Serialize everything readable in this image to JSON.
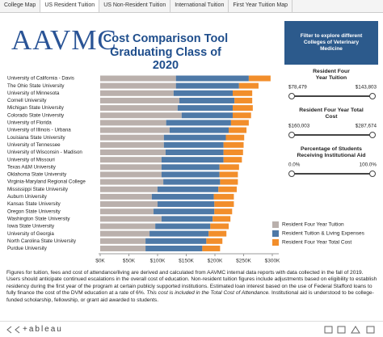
{
  "tabs": [
    "College Map",
    "US Resident Tuition",
    "US Non-Resident Tuition",
    "International Tuition",
    "First Year Tuition Map"
  ],
  "active_tab": 1,
  "logo": "AAVMC",
  "header": {
    "title": "Cost Comparison Tool",
    "subtitle": "Graduating Class of 2020"
  },
  "filter_button": "Filter to explore different Colleges of Veterinary Medicine",
  "filters": [
    {
      "title": "Resident Four Year Tuition",
      "min": "$78,479",
      "max": "$143,803"
    },
    {
      "title": "Resident Four Year Total Cost",
      "min": "$160,003",
      "max": "$287,674"
    },
    {
      "title": "Percentage of Students Receiving Institutional Aid",
      "min": "0.0%",
      "max": "100.0%"
    }
  ],
  "chart_data": {
    "type": "bar",
    "orientation": "horizontal",
    "stacked": true,
    "categories": [
      "University of California - Davis",
      "The Ohio State University",
      "University of Minnesota",
      "Cornell University",
      "Michigan State University",
      "Colorado State University",
      "University of Florida",
      "University of Illinois - Urbana",
      "Louisiana State University",
      "University of Tennessee",
      "University of Wisconsin - Madison",
      "University of Missouri",
      "Texas A&M University",
      "Oklahoma State University",
      "Virginia-Maryland Regional College",
      "Mississippi State University",
      "Auburn University",
      "Kansas State University",
      "Oregon State University",
      "Washington State University",
      "Iowa State University",
      "University of Georgia",
      "North Carolina State University",
      "Purdue University"
    ],
    "series": [
      {
        "name": "Resident Four Year Tuition",
        "color": "#bab0ac",
        "values": [
          132,
          132,
          128,
          138,
          135,
          142,
          115,
          121,
          111,
          111,
          114,
          107,
          107,
          107,
          110,
          100,
          90,
          100,
          93,
          107,
          96,
          86,
          79,
          79
        ]
      },
      {
        "name": "Resident Tuition & Living Expenses",
        "color": "#4e79a7",
        "values": [
          127,
          110,
          103,
          96,
          96,
          89,
          113,
          103,
          108,
          104,
          101,
          108,
          101,
          101,
          99,
          106,
          108,
          99,
          106,
          89,
          96,
          103,
          106,
          99
        ]
      },
      {
        "name": "Resident Four Year Total Cost",
        "color": "#f28e2b",
        "values": [
          38,
          34,
          34,
          31,
          35,
          32,
          31,
          31,
          32,
          35,
          34,
          32,
          34,
          32,
          31,
          32,
          35,
          34,
          31,
          31,
          32,
          31,
          28,
          31
        ]
      }
    ],
    "xlim": [
      0,
      300
    ],
    "xticks": [
      {
        "value": 0,
        "label": "$0K"
      },
      {
        "value": 50,
        "label": "$50K"
      },
      {
        "value": 100,
        "label": "$100K"
      },
      {
        "value": 150,
        "label": "$150K"
      },
      {
        "value": 200,
        "label": "$200K"
      },
      {
        "value": 250,
        "label": "$250K"
      },
      {
        "value": 300,
        "label": "$300K"
      }
    ],
    "legend": "right"
  },
  "footnote": {
    "text": "Figures for tuition, fees and cost of attendance/living are derived and calculated from AAVMC internal data reports with data collected in the fall of 2019. Users should anticipate continued escalations in the overall cost of education. Non-resident tuition figures include adjustments based on eligibility to establish residency during the first year of the program at certain publicly supported institutions. Estimated loan interest based on the use of Federal Stafford loans to fully finance the cost of the DVM education at a rate of 6%.",
    "italic": "This cost is included in the Total Cost of Attendance.",
    "tail": "Institutional aid is understood to be college-funded scholarship, fellowship, or grant aid awarded to students."
  },
  "brand": "+ableau"
}
